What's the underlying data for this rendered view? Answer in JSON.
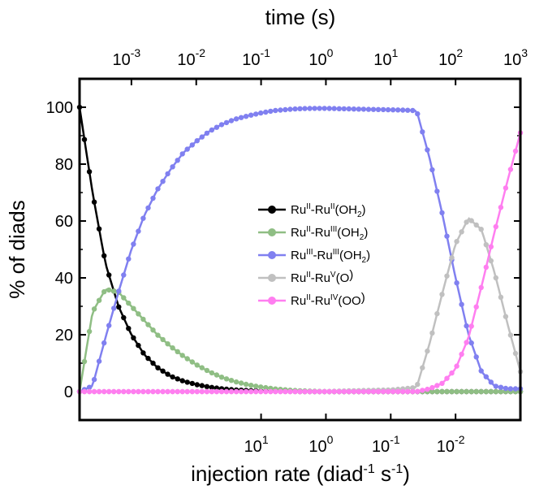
{
  "chart_data": {
    "type": "line",
    "title": "",
    "xlabel_bottom": "injection rate (diad",
    "xlabel_bottom_exp1": "-1",
    "xlabel_bottom_mid": " s",
    "xlabel_bottom_exp2": "-1",
    "xlabel_bottom_end": ")",
    "xlabel_top": "time (s)",
    "ylabel": "% of diads",
    "ylim": [
      -10,
      110
    ],
    "grid": false,
    "legend_position": "center-right",
    "y_ticks": [
      "0",
      "20",
      "40",
      "60",
      "80",
      "100"
    ],
    "top_ticks": [
      {
        "base": "10",
        "exp": "-3"
      },
      {
        "base": "10",
        "exp": "-2"
      },
      {
        "base": "10",
        "exp": "-1"
      },
      {
        "base": "10",
        "exp": "0"
      },
      {
        "base": "10",
        "exp": "1"
      },
      {
        "base": "10",
        "exp": "2"
      },
      {
        "base": "10",
        "exp": "3"
      }
    ],
    "bottom_ticks": [
      {
        "base": "10",
        "exp": "1"
      },
      {
        "base": "10",
        "exp": "0"
      },
      {
        "base": "10",
        "exp": "-1"
      },
      {
        "base": "10",
        "exp": "-2"
      }
    ],
    "series": [
      {
        "name": "Ru(II)-Ru(II)(OH2)",
        "color": "#000000",
        "legend": {
          "a": "Ru",
          "a_sup": "II",
          "b": "-Ru",
          "b_sup": "II",
          "c": "(OH",
          "c_sub": "2",
          "d": ")"
        }
      },
      {
        "name": "Ru(II)-Ru(III)(OH2)",
        "color": "#8fbe84",
        "legend": {
          "a": "Ru",
          "a_sup": "II",
          "b": "-Ru",
          "b_sup": "III",
          "c": "(OH",
          "c_sub": "2",
          "d": ")"
        }
      },
      {
        "name": "Ru(III)-Ru(III)(OH2)",
        "color": "#8080f0",
        "legend": {
          "a": "Ru",
          "a_sup": "III",
          "b": "-Ru",
          "b_sup": "III",
          "c": "(OH",
          "c_sub": "2",
          "d": ")"
        }
      },
      {
        "name": "Ru(II)-Ru(V)(O)",
        "color": "#c0c0c0",
        "legend": {
          "a": "Ru",
          "a_sup": "II",
          "b": "-Ru",
          "b_sup": "V",
          "c": "(O",
          "c_sub": "",
          "d": ")"
        }
      },
      {
        "name": "Ru(II)-Ru(IV)(OO)",
        "color": "#ff7ef0",
        "legend": {
          "a": "Ru",
          "a_sup": "II",
          "b": "-Ru",
          "b_sup": "IV",
          "c": "(OO",
          "c_sub": "",
          "d": ")"
        }
      }
    ],
    "x_log10_time_range": [
      -3.8,
      3.0
    ],
    "curves": {
      "t_log10": [
        -3.8,
        -3.6,
        -3.4,
        -3.2,
        -3.0,
        -2.8,
        -2.6,
        -2.4,
        -2.2,
        -2.0,
        -1.8,
        -1.6,
        -1.4,
        -1.2,
        -1.0,
        -0.8,
        -0.6,
        -0.4,
        -0.2,
        0.0,
        0.2,
        0.4,
        0.6,
        0.8,
        1.0,
        1.2,
        1.4,
        1.6,
        1.8,
        2.0,
        2.2,
        2.4,
        2.6,
        2.8,
        3.0
      ],
      "Ru(II)-Ru(II)(OH2)": [
        100,
        70,
        45,
        30,
        20,
        13,
        8.5,
        5.5,
        3.7,
        2.5,
        1.6,
        1.0,
        0.6,
        0.4,
        0.2,
        0.1,
        0.05,
        0,
        0,
        0,
        0,
        0,
        0,
        0,
        0,
        0,
        0,
        0,
        0,
        0,
        0,
        0,
        0,
        0,
        0
      ],
      "Ru(II)-Ru(III)(OH2)": [
        0,
        28,
        36,
        35,
        30,
        25,
        20,
        16,
        12.5,
        9.5,
        7,
        5,
        3.5,
        2.4,
        1.6,
        1.0,
        0.6,
        0.3,
        0.15,
        0,
        0,
        0,
        0,
        0,
        0,
        0,
        0,
        0,
        0,
        0,
        0,
        0,
        0,
        0,
        0
      ],
      "Ru(III)-Ru(III)(OH2)": [
        0,
        2,
        19,
        35,
        50,
        62,
        71,
        78,
        84,
        88,
        91.5,
        94,
        95.8,
        97,
        98,
        98.8,
        99.2,
        99.5,
        99.6,
        99.6,
        99.5,
        99.4,
        99.3,
        99.2,
        99.1,
        99.0,
        98.8,
        82,
        62,
        40,
        20,
        7,
        2,
        1,
        1
      ],
      "Ru(II)-Ru(V)(O)": [
        0,
        0,
        0,
        0,
        0,
        0,
        0,
        0,
        0,
        0,
        0,
        0,
        0,
        0,
        0,
        0,
        0,
        0,
        0,
        0,
        0.2,
        0.3,
        0.4,
        0.5,
        0.6,
        1.0,
        1.5,
        17,
        35,
        52,
        61,
        57,
        42,
        24,
        7
      ],
      "Ru(II)-Ru(IV)(OO)": [
        0,
        0,
        0,
        0,
        0,
        0,
        0,
        0,
        0,
        0,
        0,
        0,
        0,
        0,
        0,
        0,
        0,
        0,
        0,
        0,
        0,
        0,
        0,
        0,
        0,
        0,
        0,
        1,
        3,
        8,
        19,
        37,
        56,
        74,
        91
      ]
    }
  }
}
